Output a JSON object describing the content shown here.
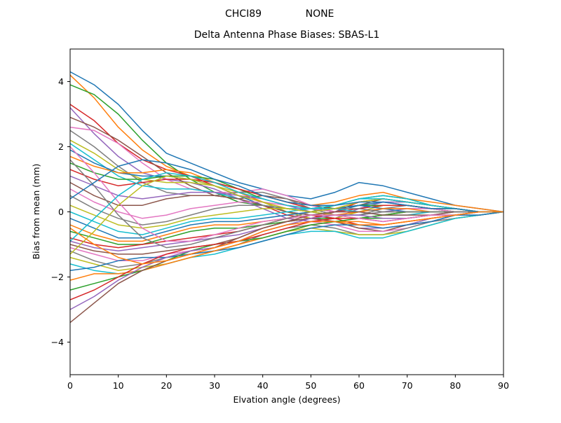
{
  "header": {
    "station_id": "CHCI89",
    "mode": "NONE"
  },
  "chart_data": {
    "type": "line",
    "suptitle_left": "CHCI89",
    "suptitle_right": "NONE",
    "title": "Delta Antenna Phase Biases: SBAS-L1",
    "xlabel": "Elvation angle (degrees)",
    "ylabel": "Bias from mean (mm)",
    "xlim": [
      0,
      90
    ],
    "ylim": [
      -5,
      5
    ],
    "x_ticks": [
      0,
      10,
      20,
      30,
      40,
      50,
      60,
      70,
      80,
      90
    ],
    "y_ticks": [
      -4,
      -2,
      0,
      2,
      4
    ],
    "grid": false,
    "legend": "none",
    "line_width": 1.5,
    "palette": [
      "#1f77b4",
      "#ff7f0e",
      "#2ca02c",
      "#d62728",
      "#9467bd",
      "#8c564b",
      "#e377c2",
      "#7f7f7f",
      "#bcbd22",
      "#17becf"
    ],
    "x": [
      0,
      5,
      10,
      15,
      20,
      25,
      30,
      35,
      40,
      45,
      50,
      55,
      60,
      65,
      70,
      75,
      80,
      85,
      90
    ],
    "series": [
      [
        4.3,
        3.9,
        3.3,
        2.5,
        1.8,
        1.5,
        1.2,
        0.9,
        0.7,
        0.5,
        0.4,
        0.6,
        0.9,
        0.8,
        0.6,
        0.4,
        0.2,
        0.1,
        0.0
      ],
      [
        4.2,
        3.5,
        2.6,
        1.9,
        1.4,
        1.1,
        0.9,
        0.7,
        0.5,
        0.3,
        0.2,
        0.3,
        0.5,
        0.6,
        0.4,
        0.3,
        0.2,
        0.1,
        0.0
      ],
      [
        3.9,
        3.6,
        3.0,
        2.2,
        1.5,
        1.0,
        0.6,
        0.3,
        0.2,
        0.1,
        0.0,
        0.2,
        0.4,
        0.5,
        0.4,
        0.2,
        0.1,
        0.0,
        0.0
      ],
      [
        3.3,
        2.8,
        2.1,
        1.6,
        1.3,
        1.1,
        0.8,
        0.5,
        0.2,
        -0.1,
        -0.2,
        0.0,
        0.3,
        0.4,
        0.3,
        0.2,
        0.1,
        0.0,
        0.0
      ],
      [
        3.2,
        2.4,
        1.7,
        1.2,
        1.0,
        0.9,
        0.7,
        0.4,
        0.1,
        -0.2,
        -0.3,
        -0.2,
        0.1,
        0.3,
        0.3,
        0.2,
        0.1,
        0.0,
        0.0
      ],
      [
        2.9,
        2.6,
        2.2,
        1.7,
        1.2,
        0.8,
        0.5,
        0.4,
        0.5,
        0.4,
        0.2,
        0.1,
        0.2,
        0.4,
        0.3,
        0.2,
        0.1,
        0.0,
        0.0
      ],
      [
        2.6,
        2.5,
        2.1,
        1.5,
        1.0,
        0.7,
        0.6,
        0.6,
        0.7,
        0.5,
        0.2,
        0.0,
        0.0,
        0.2,
        0.2,
        0.1,
        0.1,
        0.0,
        0.0
      ],
      [
        2.5,
        2.0,
        1.4,
        0.9,
        0.6,
        0.5,
        0.5,
        0.6,
        0.6,
        0.4,
        0.1,
        -0.1,
        -0.1,
        0.1,
        0.2,
        0.1,
        0.0,
        0.0,
        0.0
      ],
      [
        2.2,
        1.8,
        1.3,
        1.0,
        0.9,
        0.9,
        0.8,
        0.6,
        0.3,
        0.0,
        -0.2,
        -0.2,
        0.0,
        0.2,
        0.2,
        0.1,
        0.1,
        0.0,
        0.0
      ],
      [
        2.1,
        1.6,
        1.1,
        0.8,
        0.7,
        0.7,
        0.6,
        0.4,
        0.2,
        0.1,
        0.1,
        0.2,
        0.4,
        0.5,
        0.4,
        0.2,
        0.1,
        0.0,
        0.0
      ],
      [
        1.9,
        1.5,
        1.2,
        1.1,
        1.1,
        1.0,
        0.8,
        0.5,
        0.2,
        0.0,
        -0.1,
        0.0,
        0.2,
        0.3,
        0.2,
        0.1,
        0.0,
        0.0,
        0.0
      ],
      [
        1.7,
        1.4,
        1.2,
        1.2,
        1.3,
        1.2,
        0.9,
        0.6,
        0.3,
        0.1,
        0.0,
        0.1,
        0.3,
        0.4,
        0.3,
        0.2,
        0.1,
        0.0,
        0.0
      ],
      [
        1.5,
        1.2,
        1.0,
        1.0,
        1.1,
        1.1,
        1.0,
        0.7,
        0.4,
        0.2,
        0.1,
        0.1,
        0.2,
        0.2,
        0.2,
        0.1,
        0.1,
        0.0,
        0.0
      ],
      [
        1.3,
        1.0,
        0.8,
        0.9,
        1.0,
        1.0,
        0.9,
        0.7,
        0.5,
        0.3,
        0.1,
        0.0,
        0.1,
        0.2,
        0.2,
        0.1,
        0.0,
        0.0,
        0.0
      ],
      [
        1.1,
        0.8,
        0.5,
        0.4,
        0.5,
        0.6,
        0.6,
        0.5,
        0.4,
        0.2,
        0.0,
        -0.1,
        -0.1,
        0.0,
        0.1,
        0.1,
        0.0,
        0.0,
        0.0
      ],
      [
        0.9,
        0.5,
        0.2,
        0.2,
        0.4,
        0.5,
        0.5,
        0.4,
        0.2,
        0.0,
        -0.1,
        -0.2,
        -0.2,
        -0.1,
        0.0,
        0.0,
        0.0,
        0.0,
        0.0
      ],
      [
        0.7,
        0.3,
        0.0,
        -0.2,
        -0.1,
        0.1,
        0.2,
        0.3,
        0.3,
        0.2,
        0.1,
        0.0,
        0.0,
        0.1,
        0.1,
        0.1,
        0.0,
        0.0,
        0.0
      ],
      [
        0.5,
        0.1,
        -0.2,
        -0.4,
        -0.3,
        -0.1,
        0.1,
        0.2,
        0.2,
        0.1,
        0.0,
        -0.1,
        -0.1,
        0.0,
        0.0,
        0.0,
        0.0,
        0.0,
        0.0
      ],
      [
        0.2,
        -0.1,
        -0.4,
        -0.5,
        -0.4,
        -0.2,
        -0.1,
        0.0,
        0.1,
        0.1,
        0.0,
        -0.1,
        -0.2,
        -0.1,
        0.0,
        0.0,
        0.0,
        0.0,
        0.0
      ],
      [
        0.0,
        -0.3,
        -0.6,
        -0.7,
        -0.5,
        -0.3,
        -0.2,
        -0.2,
        -0.1,
        0.0,
        0.1,
        0.1,
        0.0,
        -0.1,
        -0.1,
        0.0,
        0.0,
        0.0,
        0.0
      ],
      [
        -0.2,
        -0.5,
        -0.8,
        -0.8,
        -0.6,
        -0.4,
        -0.3,
        -0.3,
        -0.2,
        -0.1,
        0.0,
        0.1,
        0.2,
        0.1,
        0.0,
        0.0,
        0.0,
        0.0,
        0.0
      ],
      [
        -0.4,
        -0.7,
        -0.9,
        -0.9,
        -0.7,
        -0.5,
        -0.4,
        -0.4,
        -0.3,
        -0.2,
        -0.1,
        -0.1,
        0.0,
        0.1,
        0.1,
        0.0,
        0.0,
        0.0,
        0.0
      ],
      [
        -0.6,
        -0.8,
        -1.0,
        -1.0,
        -0.8,
        -0.6,
        -0.5,
        -0.5,
        -0.4,
        -0.3,
        -0.2,
        -0.2,
        -0.2,
        -0.1,
        0.0,
        0.0,
        0.0,
        0.0,
        0.0
      ],
      [
        -0.8,
        -1.0,
        -1.1,
        -1.0,
        -0.9,
        -0.8,
        -0.7,
        -0.6,
        -0.4,
        -0.2,
        -0.1,
        -0.2,
        -0.4,
        -0.4,
        -0.3,
        -0.2,
        -0.1,
        0.0,
        0.0
      ],
      [
        -0.9,
        -1.1,
        -1.2,
        -1.1,
        -1.0,
        -0.9,
        -0.8,
        -0.7,
        -0.5,
        -0.3,
        -0.2,
        -0.3,
        -0.5,
        -0.5,
        -0.4,
        -0.2,
        -0.1,
        0.0,
        0.0
      ],
      [
        -1.0,
        -1.2,
        -1.3,
        -1.3,
        -1.2,
        -1.1,
        -1.0,
        -0.8,
        -0.5,
        -0.3,
        -0.2,
        -0.3,
        -0.5,
        -0.6,
        -0.4,
        -0.3,
        -0.1,
        -0.1,
        0.0
      ],
      [
        -1.1,
        -1.3,
        -1.5,
        -1.5,
        -1.3,
        -1.2,
        -1.1,
        -0.9,
        -0.6,
        -0.4,
        -0.3,
        -0.4,
        -0.6,
        -0.6,
        -0.5,
        -0.3,
        -0.2,
        -0.1,
        0.0
      ],
      [
        -1.2,
        -1.5,
        -1.7,
        -1.6,
        -1.4,
        -1.3,
        -1.2,
        -1.0,
        -0.7,
        -0.5,
        -0.4,
        -0.5,
        -0.7,
        -0.7,
        -0.5,
        -0.3,
        -0.2,
        -0.1,
        0.0
      ],
      [
        -1.4,
        -1.6,
        -1.8,
        -1.7,
        -1.6,
        -1.4,
        -1.2,
        -1.0,
        -0.8,
        -0.6,
        -0.5,
        -0.6,
        -0.7,
        -0.7,
        -0.6,
        -0.4,
        -0.2,
        -0.1,
        0.0
      ],
      [
        -1.6,
        -1.8,
        -1.9,
        -1.8,
        -1.6,
        -1.4,
        -1.3,
        -1.1,
        -0.9,
        -0.7,
        -0.6,
        -0.6,
        -0.8,
        -0.8,
        -0.6,
        -0.4,
        -0.2,
        -0.1,
        0.0
      ],
      [
        -1.8,
        -1.7,
        -1.5,
        -1.4,
        -1.4,
        -1.3,
        -1.2,
        -1.1,
        -0.9,
        -0.7,
        -0.5,
        -0.4,
        -0.4,
        -0.5,
        -0.4,
        -0.3,
        -0.1,
        -0.1,
        0.0
      ],
      [
        -2.1,
        -1.9,
        -1.9,
        -1.8,
        -1.6,
        -1.4,
        -1.2,
        -1.0,
        -0.8,
        -0.6,
        -0.4,
        -0.3,
        -0.3,
        -0.4,
        -0.3,
        -0.2,
        -0.1,
        0.0,
        0.0
      ],
      [
        -2.4,
        -2.2,
        -2.0,
        -1.8,
        -1.5,
        -1.2,
        -1.0,
        -0.9,
        -0.8,
        -0.6,
        -0.4,
        -0.3,
        -0.2,
        -0.2,
        -0.2,
        -0.1,
        -0.1,
        0.0,
        0.0
      ],
      [
        -2.7,
        -2.4,
        -2.0,
        -1.6,
        -1.3,
        -1.1,
        -1.0,
        -0.9,
        -0.7,
        -0.5,
        -0.3,
        -0.2,
        -0.2,
        -0.3,
        -0.2,
        -0.1,
        -0.1,
        0.0,
        0.0
      ],
      [
        -3.0,
        -2.6,
        -2.1,
        -1.7,
        -1.4,
        -1.2,
        -1.1,
        -0.9,
        -0.6,
        -0.4,
        -0.2,
        -0.1,
        -0.1,
        -0.2,
        -0.2,
        -0.1,
        0.0,
        0.0,
        0.0
      ],
      [
        -3.4,
        -2.8,
        -2.2,
        -1.8,
        -1.5,
        -1.3,
        -1.1,
        -0.8,
        -0.5,
        -0.3,
        -0.1,
        0.0,
        0.0,
        -0.1,
        -0.1,
        -0.1,
        0.0,
        0.0,
        0.0
      ],
      [
        2.0,
        1.2,
        0.3,
        -0.5,
        -0.9,
        -0.9,
        -0.7,
        -0.5,
        -0.3,
        -0.2,
        -0.1,
        -0.1,
        -0.2,
        -0.3,
        -0.2,
        -0.1,
        -0.1,
        0.0,
        0.0
      ],
      [
        1.6,
        0.8,
        -0.1,
        -0.8,
        -1.1,
        -1.0,
        -0.8,
        -0.6,
        -0.4,
        -0.2,
        0.0,
        0.1,
        0.1,
        0.0,
        0.0,
        0.0,
        0.0,
        0.0,
        0.0
      ],
      [
        -1.3,
        -0.6,
        0.2,
        0.8,
        1.1,
        1.0,
        0.8,
        0.5,
        0.3,
        0.1,
        0.0,
        0.1,
        0.3,
        0.4,
        0.3,
        0.2,
        0.1,
        0.0,
        0.0
      ],
      [
        -0.9,
        -0.2,
        0.5,
        1.0,
        1.2,
        1.1,
        0.9,
        0.6,
        0.4,
        0.2,
        0.1,
        0.2,
        0.4,
        0.4,
        0.3,
        0.2,
        0.1,
        0.0,
        0.0
      ],
      [
        0.4,
        0.9,
        1.4,
        1.6,
        1.5,
        1.3,
        1.0,
        0.8,
        0.5,
        0.3,
        0.2,
        0.2,
        0.3,
        0.3,
        0.2,
        0.1,
        0.1,
        0.0,
        0.0
      ],
      [
        -0.5,
        -1.0,
        -1.4,
        -1.6,
        -1.5,
        -1.3,
        -1.1,
        -0.9,
        -0.6,
        -0.4,
        -0.3,
        -0.3,
        -0.4,
        -0.4,
        -0.3,
        -0.2,
        -0.1,
        0.0,
        0.0
      ]
    ]
  }
}
